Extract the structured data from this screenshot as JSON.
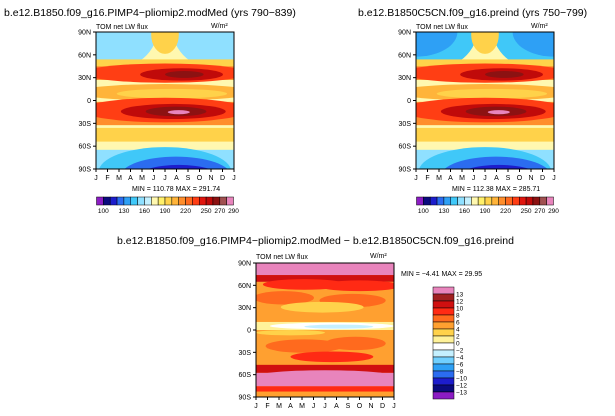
{
  "chart_data": [
    {
      "type": "heatmap",
      "title": "b.e12.B1850.f09_g16.PIMP4−pliomip2.modMed (yrs 790−839)",
      "subtitle": "TOM net LW flux",
      "units": "W/m²",
      "xlabel": "",
      "ylabel": "",
      "x_categories": [
        "J",
        "F",
        "M",
        "A",
        "M",
        "J",
        "J",
        "A",
        "S",
        "O",
        "N",
        "D",
        "J"
      ],
      "y_ticks": [
        "90N",
        "60N",
        "30N",
        "0",
        "30S",
        "60S",
        "90S"
      ],
      "ylim": [
        -90,
        90
      ],
      "stats": "MIN = 110.78  MAX = 291.74",
      "colorbar": {
        "orientation": "horizontal",
        "labels": [
          "100",
          "130",
          "160",
          "190",
          "220",
          "250",
          "270",
          "290"
        ],
        "levels": [
          100,
          110,
          120,
          130,
          140,
          150,
          160,
          170,
          180,
          190,
          200,
          210,
          220,
          230,
          240,
          250,
          260,
          270,
          280,
          290
        ],
        "colors": [
          "#8c1cc4",
          "#0b0b7e",
          "#1d1dcc",
          "#2b6cf0",
          "#2ea0f5",
          "#40c8f8",
          "#8fe0ff",
          "#c4f0ff",
          "#fff8b0",
          "#fff06a",
          "#ffd24a",
          "#ffb43a",
          "#ff8e2c",
          "#ff6a1e",
          "#ff3e14",
          "#e0150e",
          "#c00a0a",
          "#8c1212",
          "#a05050",
          "#e884bc"
        ]
      }
    },
    {
      "type": "heatmap",
      "title": "b.e12.B1850C5CN.f09_g16.preind (yrs 750−799)",
      "subtitle": "TOM net LW flux",
      "units": "W/m²",
      "xlabel": "",
      "ylabel": "",
      "x_categories": [
        "J",
        "F",
        "M",
        "A",
        "M",
        "J",
        "J",
        "A",
        "S",
        "O",
        "N",
        "D",
        "J"
      ],
      "y_ticks": [
        "90N",
        "60N",
        "30N",
        "0",
        "30S",
        "60S",
        "90S"
      ],
      "ylim": [
        -90,
        90
      ],
      "stats": "MIN = 112.38  MAX = 285.71",
      "colorbar": {
        "orientation": "horizontal",
        "labels": [
          "100",
          "130",
          "160",
          "190",
          "220",
          "250",
          "270",
          "290"
        ],
        "levels": [
          100,
          110,
          120,
          130,
          140,
          150,
          160,
          170,
          180,
          190,
          200,
          210,
          220,
          230,
          240,
          250,
          260,
          270,
          280,
          290
        ],
        "colors": [
          "#8c1cc4",
          "#0b0b7e",
          "#1d1dcc",
          "#2b6cf0",
          "#2ea0f5",
          "#40c8f8",
          "#8fe0ff",
          "#c4f0ff",
          "#fff8b0",
          "#fff06a",
          "#ffd24a",
          "#ffb43a",
          "#ff8e2c",
          "#ff6a1e",
          "#ff3e14",
          "#e0150e",
          "#c00a0a",
          "#8c1212",
          "#a05050",
          "#e884bc"
        ]
      }
    },
    {
      "type": "heatmap",
      "title": "b.e12.B1850.f09_g16.PIMP4−pliomip2.modMed − b.e12.B1850C5CN.f09_g16.preind",
      "subtitle": "TOM net LW flux",
      "units": "W/m²",
      "xlabel": "",
      "ylabel": "",
      "x_categories": [
        "J",
        "F",
        "M",
        "A",
        "M",
        "J",
        "J",
        "A",
        "S",
        "O",
        "N",
        "D",
        "J"
      ],
      "y_ticks": [
        "90N",
        "60N",
        "30N",
        "0",
        "30S",
        "60S",
        "90S"
      ],
      "ylim": [
        -90,
        90
      ],
      "stats": "MIN =   −4.41  MAX =   29.95",
      "colorbar": {
        "orientation": "vertical",
        "labels": [
          "13",
          "12",
          "10",
          "8",
          "6",
          "4",
          "2",
          "0",
          "−2",
          "−4",
          "−6",
          "−8",
          "−10",
          "−12",
          "−13"
        ],
        "colors": [
          "#e884bc",
          "#a02020",
          "#d01010",
          "#ff2a14",
          "#ff6a1e",
          "#ffa030",
          "#ffd24a",
          "#fff29a",
          "#ffffff",
          "#c4f0ff",
          "#70d0ff",
          "#2ea0f5",
          "#2b6cf0",
          "#1d1dcc",
          "#0b0b7e",
          "#8c1cc4"
        ]
      }
    }
  ]
}
